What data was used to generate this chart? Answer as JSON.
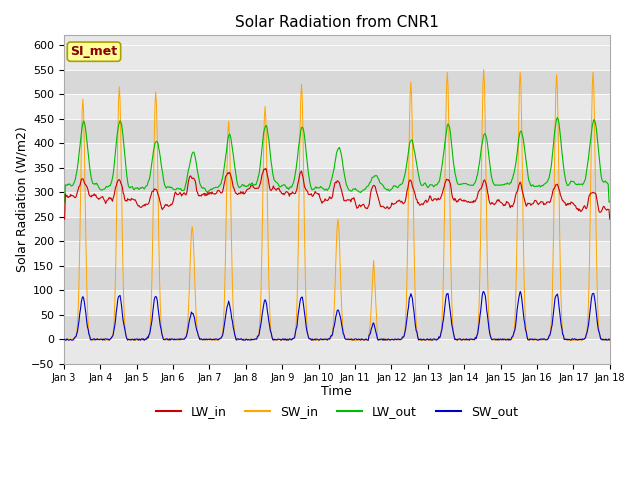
{
  "title": "Solar Radiation from CNR1",
  "xlabel": "Time",
  "ylabel": "Solar Radiation (W/m2)",
  "legend_label": "SI_met",
  "ylim": [
    -50,
    620
  ],
  "yticks": [
    -50,
    0,
    50,
    100,
    150,
    200,
    250,
    300,
    350,
    400,
    450,
    500,
    550,
    600
  ],
  "colors": {
    "LW_in": "#cc0000",
    "SW_in": "#ffa500",
    "LW_out": "#00bb00",
    "SW_out": "#0000cc"
  },
  "stripe_colors": [
    "#e8e8e8",
    "#d8d8d8"
  ],
  "n_days": 15,
  "start_day": 3
}
